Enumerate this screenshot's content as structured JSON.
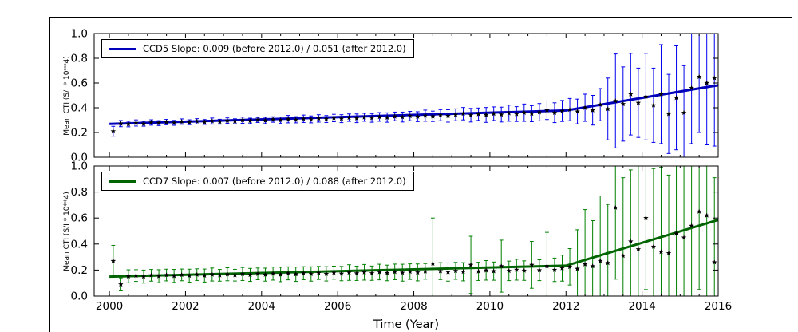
{
  "figure": {
    "bg": "#ffffff",
    "canvas_border": "#000000",
    "xlabel": "Time (Year)",
    "xlim": [
      1999.6,
      2016.0
    ],
    "ylim": [
      0.0,
      1.0
    ],
    "x_ticks": [
      2000,
      2002,
      2004,
      2006,
      2008,
      2010,
      2012,
      2014,
      2016
    ],
    "y_ticks": [
      0.0,
      0.2,
      0.4,
      0.6,
      0.8,
      1.0
    ],
    "y_tick_labels": [
      "0.0",
      "0.2",
      "0.4",
      "0.6",
      "0.8",
      "1.0"
    ]
  },
  "chart_data": [
    {
      "type": "scatter",
      "name": "CCD5",
      "legend": "CCD5 Slope: 0.009 (before 2012.0) / 0.051 (after 2012.0)",
      "ylabel": "Mean CTI (S/I * 10**4)",
      "bar_color": "#0000ee",
      "line_color": "#0000bb",
      "marker_color": "#000000",
      "fit": {
        "x_start": 2000.0,
        "x_break": 2012.0,
        "x_end": 2016.0,
        "y_start": 0.27,
        "slope_before": 0.009,
        "slope_after": 0.051
      },
      "x": [
        2000.1,
        2000.3,
        2000.5,
        2000.7,
        2000.9,
        2001.1,
        2001.3,
        2001.5,
        2001.7,
        2001.9,
        2002.1,
        2002.3,
        2002.5,
        2002.7,
        2002.9,
        2003.1,
        2003.3,
        2003.5,
        2003.7,
        2003.9,
        2004.1,
        2004.3,
        2004.5,
        2004.7,
        2004.9,
        2005.1,
        2005.3,
        2005.5,
        2005.7,
        2005.9,
        2006.1,
        2006.3,
        2006.5,
        2006.7,
        2006.9,
        2007.1,
        2007.3,
        2007.5,
        2007.7,
        2007.9,
        2008.1,
        2008.3,
        2008.5,
        2008.7,
        2008.9,
        2009.1,
        2009.3,
        2009.5,
        2009.7,
        2009.9,
        2010.1,
        2010.3,
        2010.5,
        2010.7,
        2010.9,
        2011.1,
        2011.3,
        2011.5,
        2011.7,
        2011.9,
        2012.1,
        2012.3,
        2012.5,
        2012.7,
        2012.9,
        2013.1,
        2013.3,
        2013.5,
        2013.7,
        2013.9,
        2014.1,
        2014.3,
        2014.5,
        2014.7,
        2014.9,
        2015.1,
        2015.3,
        2015.5,
        2015.7,
        2015.9
      ],
      "y": [
        0.21,
        0.272,
        0.268,
        0.277,
        0.271,
        0.281,
        0.276,
        0.284,
        0.278,
        0.288,
        0.283,
        0.29,
        0.285,
        0.292,
        0.287,
        0.296,
        0.291,
        0.299,
        0.294,
        0.301,
        0.297,
        0.305,
        0.3,
        0.308,
        0.303,
        0.311,
        0.306,
        0.314,
        0.309,
        0.317,
        0.312,
        0.32,
        0.315,
        0.323,
        0.318,
        0.326,
        0.321,
        0.33,
        0.325,
        0.333,
        0.328,
        0.336,
        0.331,
        0.34,
        0.334,
        0.343,
        0.352,
        0.34,
        0.348,
        0.342,
        0.352,
        0.345,
        0.356,
        0.349,
        0.36,
        0.352,
        0.364,
        0.38,
        0.36,
        0.374,
        0.385,
        0.37,
        0.4,
        0.38,
        0.425,
        0.39,
        0.455,
        0.43,
        0.51,
        0.44,
        0.49,
        0.42,
        0.51,
        0.35,
        0.48,
        0.36,
        0.56,
        0.65,
        0.6,
        0.64
      ],
      "yerr": [
        0.04,
        0.025,
        0.022,
        0.025,
        0.02,
        0.022,
        0.02,
        0.022,
        0.02,
        0.022,
        0.02,
        0.022,
        0.02,
        0.025,
        0.02,
        0.022,
        0.02,
        0.025,
        0.022,
        0.02,
        0.025,
        0.022,
        0.025,
        0.03,
        0.025,
        0.03,
        0.028,
        0.03,
        0.028,
        0.03,
        0.032,
        0.03,
        0.035,
        0.032,
        0.035,
        0.035,
        0.038,
        0.035,
        0.04,
        0.038,
        0.04,
        0.045,
        0.042,
        0.045,
        0.05,
        0.048,
        0.05,
        0.055,
        0.05,
        0.06,
        0.055,
        0.06,
        0.065,
        0.06,
        0.07,
        0.065,
        0.07,
        0.075,
        0.08,
        0.085,
        0.09,
        0.1,
        0.11,
        0.12,
        0.13,
        0.25,
        0.38,
        0.3,
        0.33,
        0.28,
        0.35,
        0.3,
        0.4,
        0.32,
        0.42,
        0.38,
        0.45,
        0.45,
        0.5,
        0.55
      ]
    },
    {
      "type": "scatter",
      "name": "CCD7",
      "legend": "CCD7 Slope: 0.007 (before 2012.0) / 0.088 (after 2012.0)",
      "ylabel": "Mean CTI (S/I * 10**4)",
      "bar_color": "#008000",
      "line_color": "#006400",
      "marker_color": "#000000",
      "fit": {
        "x_start": 2000.0,
        "x_break": 2012.0,
        "x_end": 2016.0,
        "y_start": 0.15,
        "slope_before": 0.007,
        "slope_after": 0.088
      },
      "x": [
        2000.1,
        2000.3,
        2000.5,
        2000.7,
        2000.9,
        2001.1,
        2001.3,
        2001.5,
        2001.7,
        2001.9,
        2002.1,
        2002.3,
        2002.5,
        2002.7,
        2002.9,
        2003.1,
        2003.3,
        2003.5,
        2003.7,
        2003.9,
        2004.1,
        2004.3,
        2004.5,
        2004.7,
        2004.9,
        2005.1,
        2005.3,
        2005.5,
        2005.7,
        2005.9,
        2006.1,
        2006.3,
        2006.5,
        2006.7,
        2006.9,
        2007.1,
        2007.3,
        2007.5,
        2007.7,
        2007.9,
        2008.1,
        2008.3,
        2008.5,
        2008.7,
        2008.9,
        2009.1,
        2009.3,
        2009.5,
        2009.7,
        2009.9,
        2010.1,
        2010.3,
        2010.5,
        2010.7,
        2010.9,
        2011.1,
        2011.3,
        2011.5,
        2011.7,
        2011.9,
        2012.1,
        2012.3,
        2012.5,
        2012.7,
        2012.9,
        2013.1,
        2013.3,
        2013.5,
        2013.7,
        2013.9,
        2014.1,
        2014.3,
        2014.5,
        2014.7,
        2014.9,
        2015.1,
        2015.3,
        2015.5,
        2015.7,
        2015.9
      ],
      "y": [
        0.27,
        0.09,
        0.152,
        0.158,
        0.15,
        0.16,
        0.153,
        0.162,
        0.155,
        0.163,
        0.157,
        0.165,
        0.158,
        0.166,
        0.16,
        0.168,
        0.161,
        0.17,
        0.163,
        0.171,
        0.165,
        0.173,
        0.166,
        0.175,
        0.168,
        0.176,
        0.17,
        0.178,
        0.171,
        0.18,
        0.173,
        0.181,
        0.175,
        0.183,
        0.176,
        0.185,
        0.178,
        0.186,
        0.18,
        0.188,
        0.182,
        0.19,
        0.25,
        0.192,
        0.185,
        0.194,
        0.187,
        0.24,
        0.19,
        0.198,
        0.192,
        0.23,
        0.194,
        0.203,
        0.196,
        0.24,
        0.199,
        0.23,
        0.202,
        0.215,
        0.225,
        0.21,
        0.245,
        0.23,
        0.27,
        0.255,
        0.68,
        0.31,
        0.42,
        0.36,
        0.6,
        0.38,
        0.34,
        0.33,
        0.48,
        0.45,
        0.54,
        0.65,
        0.62,
        0.26
      ],
      "yerr": [
        0.12,
        0.05,
        0.05,
        0.045,
        0.05,
        0.045,
        0.05,
        0.045,
        0.05,
        0.045,
        0.05,
        0.045,
        0.05,
        0.05,
        0.045,
        0.05,
        0.045,
        0.05,
        0.05,
        0.045,
        0.05,
        0.05,
        0.055,
        0.05,
        0.055,
        0.05,
        0.055,
        0.05,
        0.055,
        0.05,
        0.055,
        0.06,
        0.055,
        0.06,
        0.055,
        0.06,
        0.06,
        0.06,
        0.065,
        0.06,
        0.065,
        0.06,
        0.35,
        0.065,
        0.07,
        0.065,
        0.07,
        0.22,
        0.07,
        0.075,
        0.07,
        0.2,
        0.075,
        0.08,
        0.075,
        0.18,
        0.08,
        0.26,
        0.09,
        0.1,
        0.14,
        0.3,
        0.42,
        0.35,
        0.5,
        0.45,
        0.55,
        0.6,
        0.55,
        0.65,
        0.55,
        0.6,
        0.65,
        0.6,
        0.7,
        0.65,
        0.7,
        0.6,
        0.75,
        0.65
      ]
    }
  ]
}
